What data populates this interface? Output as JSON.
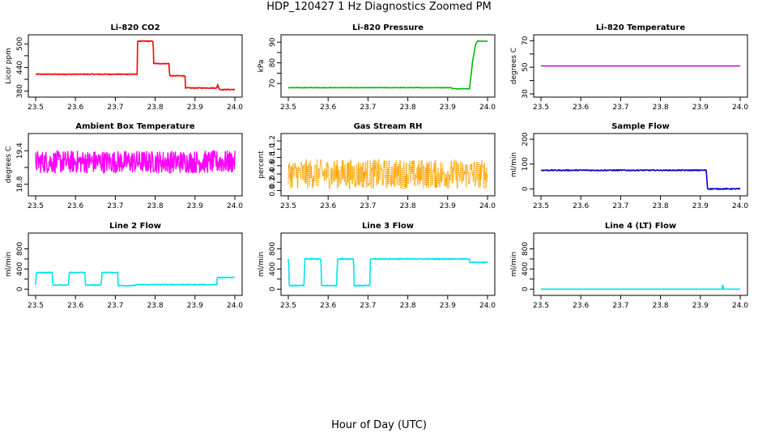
{
  "figure": {
    "title": "HDP_120427  1 Hz Diagnostics Zoomed PM",
    "xlabel": "Hour of Day (UTC)"
  },
  "chart_data": [
    {
      "type": "line",
      "title": "Li-820 CO2",
      "ylabel": "Licor ppm",
      "color": "#ff0000",
      "xlim": [
        23.5,
        24.0
      ],
      "ylim": [
        373,
        515
      ],
      "x_ticks": [
        "23.5",
        "23.6",
        "23.7",
        "23.8",
        "23.9",
        "24.0"
      ],
      "y_ticks": [
        {
          "v": 380,
          "label": "380"
        },
        {
          "v": 410,
          "label": ""
        },
        {
          "v": 440,
          "label": "440"
        },
        {
          "v": 470,
          "label": ""
        },
        {
          "v": 500,
          "label": "500"
        }
      ],
      "x": [
        23.5,
        23.755,
        23.756,
        23.795,
        23.796,
        23.835,
        23.836,
        23.875,
        23.876,
        23.955,
        23.957,
        23.96,
        23.965,
        24.0
      ],
      "y": [
        423,
        423,
        507,
        507,
        450,
        450,
        419,
        419,
        388,
        388,
        398,
        386,
        384,
        384
      ],
      "noise": 1
    },
    {
      "type": "line",
      "title": "Li-820 Pressure",
      "ylabel": "kPa",
      "color": "#00bb00",
      "xlim": [
        23.5,
        24.0
      ],
      "ylim": [
        65,
        92
      ],
      "x_ticks": [
        "23.5",
        "23.6",
        "23.7",
        "23.8",
        "23.9",
        "24.0"
      ],
      "y_ticks": [
        {
          "v": 70,
          "label": "70"
        },
        {
          "v": 75,
          "label": ""
        },
        {
          "v": 80,
          "label": "80"
        },
        {
          "v": 85,
          "label": ""
        },
        {
          "v": 90,
          "label": "90"
        }
      ],
      "x": [
        23.5,
        23.91,
        23.912,
        23.955,
        23.962,
        23.97,
        23.975,
        24.0
      ],
      "y": [
        68,
        68,
        67.5,
        67.5,
        80,
        89,
        90.5,
        90.5
      ],
      "noise": 0.1
    },
    {
      "type": "line",
      "title": "Li-820 Temperature",
      "ylabel": "degrees C",
      "color": "#cc00cc",
      "xlim": [
        23.5,
        24.0
      ],
      "ylim": [
        30,
        72
      ],
      "x_ticks": [
        "23.5",
        "23.6",
        "23.7",
        "23.8",
        "23.9",
        "24.0"
      ],
      "y_ticks": [
        {
          "v": 30,
          "label": "30"
        },
        {
          "v": 40,
          "label": ""
        },
        {
          "v": 50,
          "label": "50"
        },
        {
          "v": 60,
          "label": ""
        },
        {
          "v": 70,
          "label": "70"
        }
      ],
      "x": [
        23.5,
        24.0
      ],
      "y": [
        51,
        51
      ],
      "noise": 0
    },
    {
      "type": "line",
      "title": "Ambient Box Temperature",
      "ylabel": "degrees C",
      "color": "#ff00ff",
      "xlim": [
        23.5,
        24.0
      ],
      "ylim": [
        18.65,
        19.65
      ],
      "x_ticks": [
        "23.5",
        "23.6",
        "23.7",
        "23.8",
        "23.9",
        "24.0"
      ],
      "y_ticks": [
        {
          "v": 18.8,
          "label": "18.8"
        },
        {
          "v": 19.1,
          "label": ""
        },
        {
          "v": 19.4,
          "label": "19.4"
        }
      ],
      "x": [
        23.5,
        24.0
      ],
      "y": [
        19.2,
        19.2
      ],
      "noise": 0.2,
      "dense": true
    },
    {
      "type": "line",
      "title": "Gas Stream RH",
      "ylabel": "percent",
      "color": "#ffa500",
      "xlim": [
        23.5,
        24.0
      ],
      "ylim": [
        -0.05,
        1.3
      ],
      "x_ticks": [
        "23.5",
        "23.6",
        "23.7",
        "23.8",
        "23.9",
        "24.0"
      ],
      "y_ticks": [
        {
          "v": 0.0,
          "label": "0.0"
        },
        {
          "v": 0.2,
          "label": "0.2"
        },
        {
          "v": 0.4,
          "label": "0.4"
        },
        {
          "v": 0.6,
          "label": "0.6"
        },
        {
          "v": 0.8,
          "label": "0.8"
        },
        {
          "v": 1.0,
          "label": "1.0"
        },
        {
          "v": 1.2,
          "label": "1.2"
        }
      ],
      "x": [
        23.5,
        24.0
      ],
      "y": [
        0.4,
        0.4
      ],
      "noise": 0.35,
      "dense": true,
      "dotted": true
    },
    {
      "type": "line",
      "title": "Sample Flow",
      "ylabel": "ml/min",
      "color": "#0000cc",
      "xlim": [
        23.5,
        24.0
      ],
      "ylim": [
        -15,
        210
      ],
      "x_ticks": [
        "23.5",
        "23.6",
        "23.7",
        "23.8",
        "23.9",
        "24.0"
      ],
      "y_ticks": [
        {
          "v": 0,
          "label": "0"
        },
        {
          "v": 100,
          "label": "100"
        },
        {
          "v": 200,
          "label": "200"
        }
      ],
      "x": [
        23.5,
        23.915,
        23.918,
        24.0
      ],
      "y": [
        75,
        75,
        0,
        0
      ],
      "noise": 2
    },
    {
      "type": "line",
      "title": "Line 2 Flow",
      "ylabel": "ml/min",
      "color": "#00e5ee",
      "xlim": [
        23.5,
        24.0
      ],
      "ylim": [
        -60,
        1050
      ],
      "x_ticks": [
        "23.5",
        "23.6",
        "23.7",
        "23.8",
        "23.9",
        "24.0"
      ],
      "y_ticks": [
        {
          "v": 0,
          "label": "0"
        },
        {
          "v": 200,
          "label": ""
        },
        {
          "v": 400,
          "label": "400"
        },
        {
          "v": 600,
          "label": ""
        },
        {
          "v": 800,
          "label": "800"
        }
      ],
      "x": [
        23.5,
        23.502,
        23.542,
        23.543,
        23.583,
        23.584,
        23.624,
        23.625,
        23.665,
        23.666,
        23.706,
        23.707,
        23.75,
        23.751,
        23.955,
        23.956,
        24.0
      ],
      "y": [
        80,
        330,
        330,
        80,
        80,
        330,
        330,
        80,
        80,
        330,
        330,
        70,
        70,
        90,
        90,
        230,
        230
      ],
      "noise": 8
    },
    {
      "type": "line",
      "title": "Line 3 Flow",
      "ylabel": "ml/min",
      "color": "#00e5ee",
      "xlim": [
        23.5,
        24.0
      ],
      "ylim": [
        -60,
        1050
      ],
      "x_ticks": [
        "23.5",
        "23.6",
        "23.7",
        "23.8",
        "23.9",
        "24.0"
      ],
      "y_ticks": [
        {
          "v": 0,
          "label": "0"
        },
        {
          "v": 200,
          "label": ""
        },
        {
          "v": 400,
          "label": "400"
        },
        {
          "v": 600,
          "label": ""
        },
        {
          "v": 800,
          "label": "800"
        }
      ],
      "x": [
        23.5,
        23.501,
        23.502,
        23.54,
        23.541,
        23.582,
        23.583,
        23.622,
        23.623,
        23.664,
        23.665,
        23.705,
        23.706,
        23.955,
        23.956,
        24.0
      ],
      "y": [
        600,
        600,
        70,
        70,
        600,
        600,
        70,
        70,
        600,
        600,
        70,
        70,
        600,
        600,
        530,
        530
      ],
      "noise": 10
    },
    {
      "type": "line",
      "title": "Line 4 (LT) Flow",
      "ylabel": "ml/min",
      "color": "#00e5ee",
      "xlim": [
        23.5,
        24.0
      ],
      "ylim": [
        -60,
        1050
      ],
      "x_ticks": [
        "23.5",
        "23.6",
        "23.7",
        "23.8",
        "23.9",
        "24.0"
      ],
      "y_ticks": [
        {
          "v": 0,
          "label": "0"
        },
        {
          "v": 200,
          "label": ""
        },
        {
          "v": 400,
          "label": "400"
        },
        {
          "v": 600,
          "label": ""
        },
        {
          "v": 800,
          "label": "800"
        }
      ],
      "x": [
        23.5,
        23.955,
        23.956,
        23.957,
        23.958,
        24.0
      ],
      "y": [
        0,
        0,
        80,
        80,
        0,
        0
      ],
      "noise": 0
    }
  ]
}
